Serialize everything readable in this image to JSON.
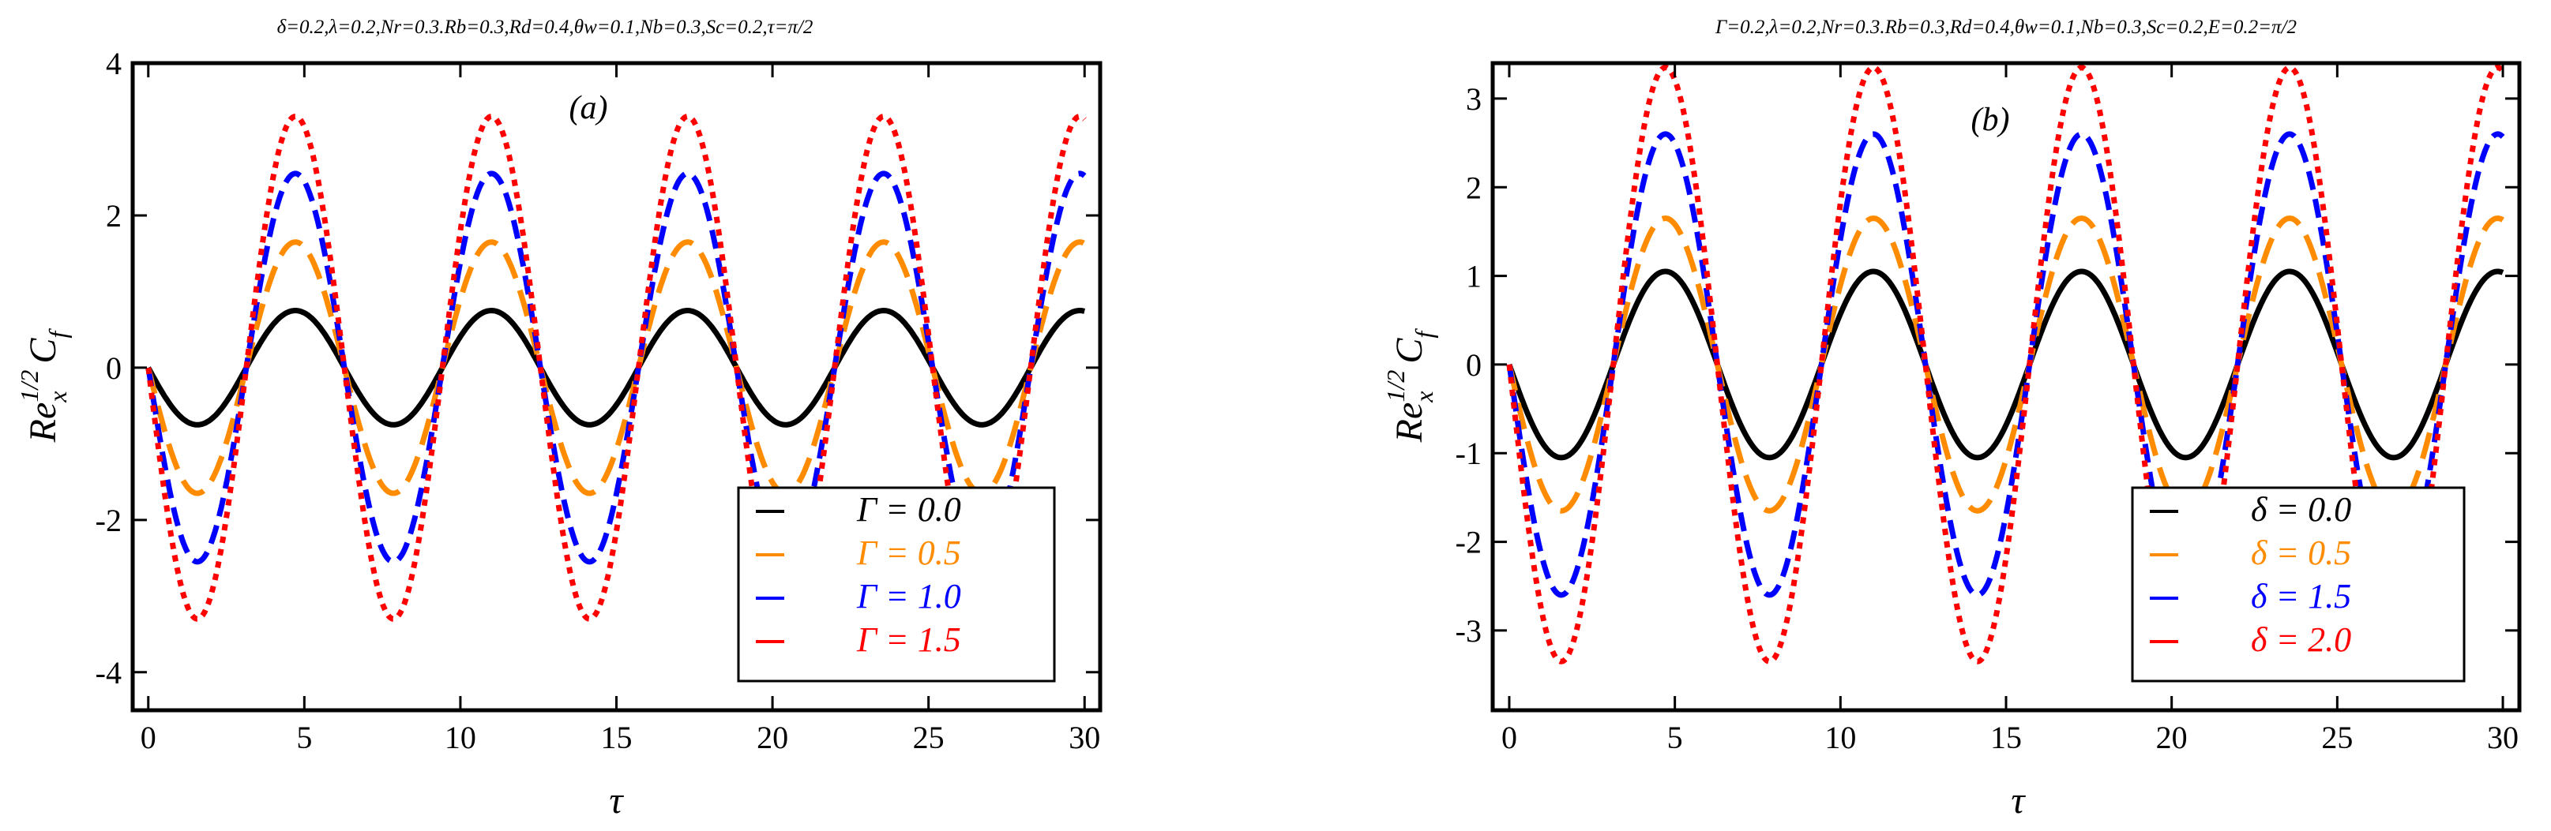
{
  "chart_data": [
    {
      "type": "line",
      "panel_label": "(a)",
      "params": "δ=0.2,λ=0.2,Nr=0.3.Rb=0.3,Rd=0.4,θw=0.1,Nb=0.3,Sc=0.2,τ=π/2",
      "xlabel": "τ",
      "ylabel_base": "Re",
      "ylabel_sub": "x",
      "ylabel_sup": "1/2",
      "ylabel_main": "C",
      "ylabel_main_sub": "f",
      "xlim": [
        -0.5,
        30.5
      ],
      "ylim": [
        -4.5,
        4.0
      ],
      "xticks": [
        0,
        5,
        10,
        15,
        20,
        25,
        30
      ],
      "xtick_labels": [
        "0",
        "5",
        "10",
        "15",
        "20",
        "25",
        "30"
      ],
      "yticks": [
        -4,
        -2,
        0,
        2,
        4
      ],
      "ytick_labels": [
        "-4",
        "-2",
        "0",
        "2",
        "4"
      ],
      "legend_position": "bottom-right",
      "series": [
        {
          "name": "Γ = 0.0",
          "color": "#000000",
          "dash": "solid",
          "amplitude": 0.75
        },
        {
          "name": "Γ = 0.5",
          "color": "#ff8c00",
          "dash": "long-dash",
          "amplitude": 1.65
        },
        {
          "name": "Γ = 1.0",
          "color": "#0000ff",
          "dash": "dash",
          "amplitude": 2.55
        },
        {
          "name": "Γ = 1.5",
          "color": "#ff0000",
          "dash": "dot",
          "amplitude": 3.3
        }
      ]
    },
    {
      "type": "line",
      "panel_label": "(b)",
      "params": "Γ=0.2,λ=0.2,Nr=0.3.Rb=0.3,Rd=0.4,θw=0.1,Nb=0.3,Sc=0.2,E=0.2=π/2",
      "xlabel": "τ",
      "ylabel_base": "Re",
      "ylabel_sub": "x",
      "ylabel_sup": "1/2",
      "ylabel_main": "C",
      "ylabel_main_sub": "f",
      "xlim": [
        -0.5,
        30.5
      ],
      "ylim": [
        -3.9,
        3.4
      ],
      "xticks": [
        0,
        5,
        10,
        15,
        20,
        25,
        30
      ],
      "xtick_labels": [
        "0",
        "5",
        "10",
        "15",
        "20",
        "25",
        "30"
      ],
      "yticks": [
        -3,
        -2,
        -1,
        0,
        1,
        2,
        3
      ],
      "ytick_labels": [
        "-3",
        "-2",
        "-1",
        "0",
        "1",
        "2",
        "3"
      ],
      "legend_position": "bottom-right",
      "series": [
        {
          "name": "δ = 0.0",
          "color": "#000000",
          "dash": "solid",
          "amplitude": 1.05
        },
        {
          "name": "δ = 0.5",
          "color": "#ff8c00",
          "dash": "long-dash",
          "amplitude": 1.65
        },
        {
          "name": "δ = 1.5",
          "color": "#0000ff",
          "dash": "dash",
          "amplitude": 2.6
        },
        {
          "name": "δ = 2.0",
          "color": "#ff0000",
          "dash": "dot",
          "amplitude": 3.35
        }
      ]
    }
  ],
  "curve_form": "y = -A·sin(τ)"
}
